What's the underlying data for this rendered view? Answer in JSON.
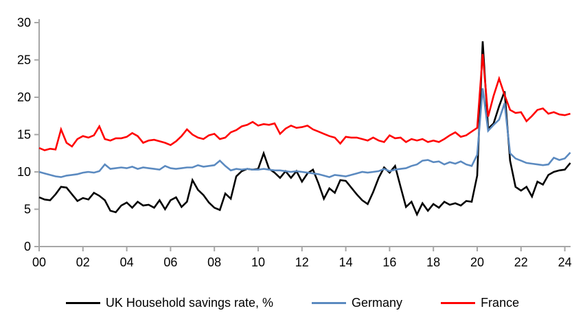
{
  "figure": {
    "background": "#FFFFFF",
    "axis_color": "#A6A6A6",
    "text_color": "#000000"
  },
  "chart_data": {
    "type": "line",
    "title": "",
    "xlabel": "",
    "ylabel": "",
    "grid": false,
    "legend_position": "bottom",
    "ylim": [
      0,
      30
    ],
    "y_ticks": [
      0,
      5,
      10,
      15,
      20,
      25,
      30
    ],
    "x_tick_labels": [
      "00",
      "02",
      "04",
      "06",
      "08",
      "10",
      "12",
      "14",
      "16",
      "18",
      "20",
      "22",
      "24"
    ],
    "x_tick_years": [
      2000,
      2002,
      2004,
      2006,
      2008,
      2010,
      2012,
      2014,
      2016,
      2018,
      2020,
      2022,
      2024
    ],
    "x_start_year": 2000,
    "x_step_years": 0.25,
    "x_frequency": "quarterly",
    "series": [
      {
        "name": "UK Household savings rate, %",
        "color": "#000000",
        "values": [
          6.6,
          6.3,
          6.2,
          7.0,
          8.0,
          7.9,
          7.0,
          6.1,
          6.5,
          6.3,
          7.2,
          6.8,
          6.2,
          4.8,
          4.6,
          5.5,
          5.9,
          5.2,
          6.0,
          5.5,
          5.6,
          5.2,
          6.2,
          5.0,
          6.2,
          6.6,
          5.3,
          6.0,
          8.9,
          7.6,
          6.9,
          5.9,
          5.2,
          4.9,
          7.1,
          6.4,
          9.4,
          10.1,
          10.4,
          10.3,
          10.4,
          12.5,
          10.4,
          9.9,
          9.2,
          10.1,
          9.2,
          10.1,
          8.7,
          9.8,
          10.3,
          8.5,
          6.4,
          7.8,
          7.2,
          8.9,
          8.8,
          7.9,
          7.0,
          6.2,
          5.7,
          7.3,
          9.2,
          10.6,
          9.9,
          10.8,
          8.0,
          5.3,
          6.0,
          4.3,
          5.8,
          4.8,
          5.7,
          5.2,
          6.0,
          5.6,
          5.8,
          5.5,
          6.1,
          6.0,
          9.5,
          27.5,
          15.8,
          16.5,
          18.8,
          20.8,
          11.5,
          8.0,
          7.5,
          8.0,
          6.7,
          8.7,
          8.3,
          9.6,
          10.0,
          10.2,
          10.3,
          11.2
        ]
      },
      {
        "name": "Germany",
        "color": "#5B8AC0",
        "values": [
          10.0,
          9.8,
          9.6,
          9.4,
          9.3,
          9.5,
          9.6,
          9.7,
          9.9,
          10.0,
          9.9,
          10.1,
          11.0,
          10.4,
          10.5,
          10.6,
          10.5,
          10.7,
          10.4,
          10.6,
          10.5,
          10.4,
          10.3,
          10.8,
          10.5,
          10.4,
          10.5,
          10.6,
          10.6,
          10.9,
          10.7,
          10.8,
          10.9,
          11.5,
          10.8,
          10.2,
          10.4,
          10.3,
          10.4,
          10.3,
          10.3,
          10.4,
          10.3,
          10.2,
          10.2,
          10.1,
          10.0,
          10.1,
          10.0,
          9.9,
          9.8,
          9.7,
          9.5,
          9.3,
          9.6,
          9.5,
          9.4,
          9.6,
          9.8,
          10.0,
          9.9,
          10.0,
          10.1,
          10.4,
          10.1,
          10.3,
          10.4,
          10.5,
          10.8,
          11.0,
          11.5,
          11.6,
          11.3,
          11.4,
          11.0,
          11.3,
          11.1,
          11.4,
          11.0,
          10.8,
          12.3,
          21.2,
          15.5,
          16.3,
          17.0,
          19.2,
          12.5,
          11.8,
          11.5,
          11.2,
          11.1,
          11.0,
          10.9,
          11.0,
          11.9,
          11.6,
          11.8,
          12.6
        ]
      },
      {
        "name": "France",
        "color": "#FF0000",
        "values": [
          13.2,
          12.9,
          13.1,
          13.0,
          15.7,
          13.9,
          13.4,
          14.4,
          14.8,
          14.6,
          14.9,
          16.1,
          14.4,
          14.2,
          14.5,
          14.5,
          14.7,
          15.2,
          14.8,
          13.9,
          14.2,
          14.3,
          14.1,
          13.9,
          13.6,
          14.1,
          14.8,
          15.7,
          15.0,
          14.6,
          14.4,
          14.9,
          15.1,
          14.4,
          14.6,
          15.3,
          15.6,
          16.1,
          16.3,
          16.7,
          16.2,
          16.4,
          16.3,
          16.5,
          15.1,
          15.8,
          16.2,
          15.9,
          16.0,
          16.2,
          15.7,
          15.4,
          15.1,
          14.8,
          14.6,
          13.8,
          14.7,
          14.6,
          14.6,
          14.4,
          14.2,
          14.6,
          14.2,
          14.0,
          14.9,
          14.5,
          14.6,
          14.0,
          14.4,
          14.2,
          14.4,
          14.0,
          14.2,
          14.0,
          14.4,
          14.9,
          15.3,
          14.7,
          14.9,
          15.4,
          15.9,
          25.8,
          17.4,
          20.2,
          22.5,
          20.3,
          18.3,
          17.9,
          18.0,
          16.8,
          17.5,
          18.3,
          18.5,
          17.8,
          18.0,
          17.7,
          17.6,
          17.8
        ]
      }
    ]
  }
}
